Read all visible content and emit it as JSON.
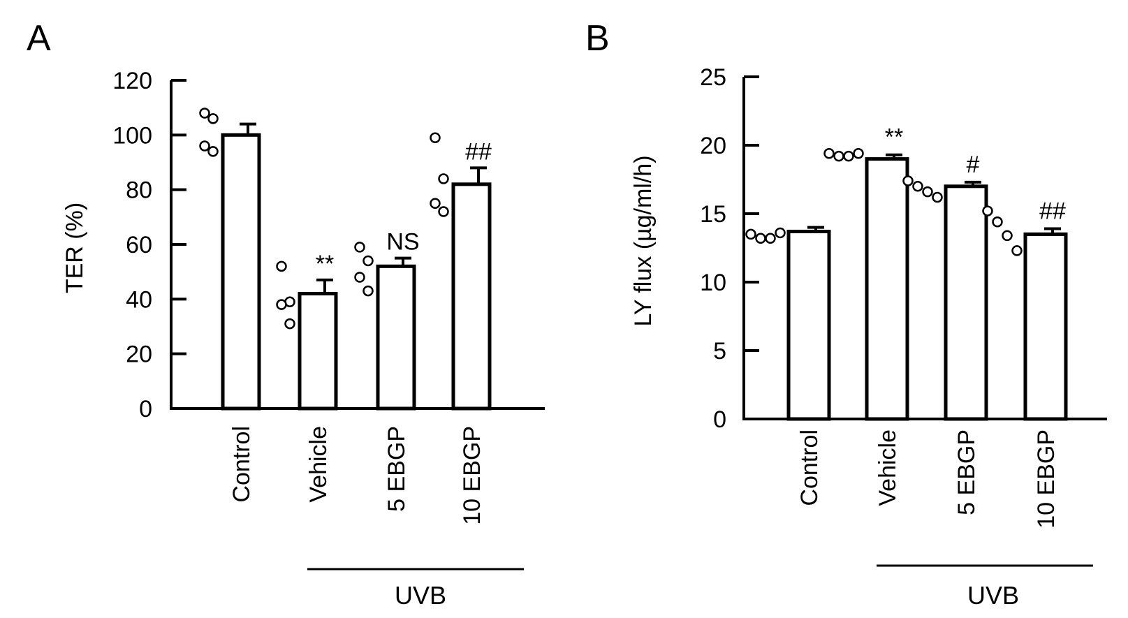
{
  "chart_data": [
    {
      "panel": "A",
      "type": "bar",
      "ylabel": "TER (%)",
      "ylim": [
        0,
        120
      ],
      "yticks": [
        0,
        20,
        40,
        60,
        80,
        100,
        120
      ],
      "categories": [
        "Control",
        "Vehicle",
        "5 EBGP",
        "10 EBGP"
      ],
      "values": [
        100,
        42,
        52,
        82
      ],
      "errors": [
        4,
        5,
        3,
        6
      ],
      "annotations": [
        "",
        "**",
        "NS",
        "##"
      ],
      "points": [
        [
          108,
          106,
          96,
          94
        ],
        [
          52,
          39,
          38,
          31
        ],
        [
          59,
          54,
          48,
          43
        ],
        [
          99,
          84,
          75,
          72
        ]
      ],
      "group": {
        "label": "UVB",
        "categories": [
          "Vehicle",
          "5 EBGP",
          "10 EBGP"
        ]
      }
    },
    {
      "panel": "B",
      "type": "bar",
      "ylabel": "LY flux (µg/ml/h)",
      "ylim": [
        0,
        25
      ],
      "yticks": [
        0,
        5,
        10,
        15,
        20,
        25
      ],
      "categories": [
        "Control",
        "Vehicle",
        "5 EBGP",
        "10 EBGP"
      ],
      "values": [
        13.7,
        19,
        17,
        13.5
      ],
      "errors": [
        0.3,
        0.3,
        0.3,
        0.4
      ],
      "annotations": [
        "",
        "**",
        "#",
        "##"
      ],
      "points": [
        [
          13.5,
          13.2,
          13.2,
          13.6
        ],
        [
          19.4,
          19.2,
          19.2,
          19.4
        ],
        [
          17.4,
          17.0,
          16.6,
          16.2
        ],
        [
          15.2,
          14.4,
          13.4,
          12.3
        ]
      ],
      "group": {
        "label": "UVB",
        "categories": [
          "Vehicle",
          "5 EBGP",
          "10 EBGP"
        ]
      }
    }
  ]
}
